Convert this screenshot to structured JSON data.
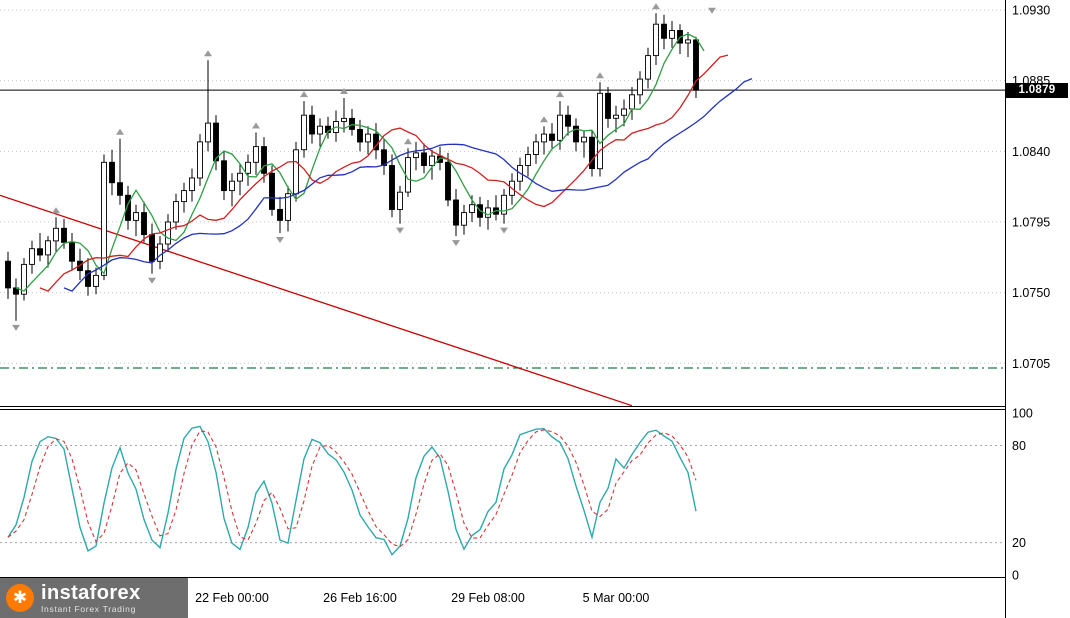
{
  "branding": {
    "logo_text": "instaforex",
    "logo_tagline": "Instant Forex Trading",
    "logo_bg": "#686868",
    "logo_icon_color": "#ff7a00"
  },
  "chart_data": {
    "type": "candlestick",
    "panes": [
      "price-with-moving-averages",
      "stochastic-oscillator"
    ],
    "price_axis": {
      "top": 1.09364,
      "bottom": 1.06778,
      "labels": [
        "1.0930",
        "1.0885",
        "1.0840",
        "1.0795",
        "1.0750",
        "1.0705"
      ],
      "label_prices": [
        1.093,
        1.0885,
        1.084,
        1.0795,
        1.075,
        1.0705
      ],
      "current_price_label": "1.0879",
      "current_price": 1.0879
    },
    "time_axis": {
      "timeframe": "H4",
      "labels": [
        "22 Feb 00:00",
        "26 Feb 16:00",
        "29 Feb 08:00",
        "5 Mar 00:00"
      ],
      "label_indices": [
        28,
        44,
        60,
        76
      ]
    },
    "candles": [
      [
        1.077,
        1.0776,
        1.0746,
        1.0753
      ],
      [
        1.0753,
        1.0759,
        1.0732,
        1.0749
      ],
      [
        1.0749,
        1.0772,
        1.0745,
        1.0768
      ],
      [
        1.0768,
        1.0783,
        1.0762,
        1.0778
      ],
      [
        1.0778,
        1.0788,
        1.077,
        1.0774
      ],
      [
        1.0774,
        1.0786,
        1.0766,
        1.0783
      ],
      [
        1.0783,
        1.0798,
        1.0776,
        1.0791
      ],
      [
        1.0791,
        1.0797,
        1.0778,
        1.0782
      ],
      [
        1.0782,
        1.0788,
        1.0764,
        1.077
      ],
      [
        1.077,
        1.0778,
        1.0758,
        1.0764
      ],
      [
        1.0764,
        1.0772,
        1.0748,
        1.0754
      ],
      [
        1.0754,
        1.0766,
        1.0749,
        1.0761
      ],
      [
        1.0761,
        1.0838,
        1.0758,
        1.0833
      ],
      [
        1.0833,
        1.0841,
        1.0812,
        1.082
      ],
      [
        1.082,
        1.0848,
        1.0806,
        1.0812
      ],
      [
        1.0812,
        1.0818,
        1.079,
        1.0796
      ],
      [
        1.0796,
        1.0806,
        1.0786,
        1.0801
      ],
      [
        1.0801,
        1.0808,
        1.0782,
        1.0787
      ],
      [
        1.0787,
        1.0794,
        1.0762,
        1.077
      ],
      [
        1.077,
        1.0786,
        1.0765,
        1.0781
      ],
      [
        1.0781,
        1.08,
        1.0776,
        1.0795
      ],
      [
        1.0795,
        1.0813,
        1.079,
        1.0808
      ],
      [
        1.0808,
        1.082,
        1.0801,
        1.0815
      ],
      [
        1.0815,
        1.0829,
        1.0808,
        1.0823
      ],
      [
        1.0823,
        1.0851,
        1.0818,
        1.0846
      ],
      [
        1.0846,
        1.0898,
        1.084,
        1.0858
      ],
      [
        1.0858,
        1.0863,
        1.0828,
        1.0834
      ],
      [
        1.0834,
        1.084,
        1.0809,
        1.0815
      ],
      [
        1.0815,
        1.0826,
        1.0805,
        1.0821
      ],
      [
        1.0821,
        1.0832,
        1.0812,
        1.0826
      ],
      [
        1.0826,
        1.0838,
        1.0818,
        1.0833
      ],
      [
        1.0833,
        1.0852,
        1.0825,
        1.0843
      ],
      [
        1.0843,
        1.0849,
        1.082,
        1.0826
      ],
      [
        1.0826,
        1.0831,
        1.0799,
        1.0803
      ],
      [
        1.0803,
        1.0811,
        1.0788,
        1.0796
      ],
      [
        1.0796,
        1.0818,
        1.0789,
        1.0813
      ],
      [
        1.0813,
        1.0846,
        1.0808,
        1.0841
      ],
      [
        1.0841,
        1.0872,
        1.0836,
        1.0863
      ],
      [
        1.0863,
        1.0869,
        1.0845,
        1.0851
      ],
      [
        1.0851,
        1.0861,
        1.0843,
        1.0856
      ],
      [
        1.0856,
        1.0862,
        1.0848,
        1.0852
      ],
      [
        1.0852,
        1.0866,
        1.0846,
        1.0859
      ],
      [
        1.0859,
        1.0874,
        1.0852,
        1.0861
      ],
      [
        1.0861,
        1.0867,
        1.085,
        1.0854
      ],
      [
        1.0854,
        1.086,
        1.084,
        1.0846
      ],
      [
        1.0846,
        1.0856,
        1.0838,
        1.0851
      ],
      [
        1.0851,
        1.0858,
        1.0835,
        1.0841
      ],
      [
        1.0841,
        1.0848,
        1.0825,
        1.0831
      ],
      [
        1.0831,
        1.0838,
        1.0798,
        1.0803
      ],
      [
        1.0803,
        1.0818,
        1.0794,
        1.0814
      ],
      [
        1.0814,
        1.0842,
        1.0811,
        1.0836
      ],
      [
        1.0836,
        1.0846,
        1.0828,
        1.0839
      ],
      [
        1.0839,
        1.0845,
        1.0826,
        1.0831
      ],
      [
        1.0831,
        1.0841,
        1.0822,
        1.0837
      ],
      [
        1.0837,
        1.0843,
        1.0828,
        1.0833
      ],
      [
        1.0833,
        1.0839,
        1.0805,
        1.0809
      ],
      [
        1.0809,
        1.0816,
        1.0786,
        1.0793
      ],
      [
        1.0793,
        1.0806,
        1.0787,
        1.0801
      ],
      [
        1.0801,
        1.0812,
        1.0795,
        1.0806
      ],
      [
        1.0806,
        1.0811,
        1.0792,
        1.0798
      ],
      [
        1.0798,
        1.0809,
        1.079,
        1.0804
      ],
      [
        1.0804,
        1.0812,
        1.0796,
        1.08
      ],
      [
        1.08,
        1.0816,
        1.0794,
        1.0812
      ],
      [
        1.0812,
        1.0826,
        1.0806,
        1.0821
      ],
      [
        1.0821,
        1.0836,
        1.0815,
        1.0831
      ],
      [
        1.0831,
        1.0843,
        1.0824,
        1.0838
      ],
      [
        1.0838,
        1.0851,
        1.0832,
        1.0846
      ],
      [
        1.0846,
        1.0856,
        1.0838,
        1.0851
      ],
      [
        1.0851,
        1.0858,
        1.0842,
        1.0847
      ],
      [
        1.0847,
        1.0872,
        1.0841,
        1.0863
      ],
      [
        1.0863,
        1.0869,
        1.085,
        1.0856
      ],
      [
        1.0856,
        1.0861,
        1.084,
        1.0846
      ],
      [
        1.0846,
        1.0853,
        1.0836,
        1.0849
      ],
      [
        1.0849,
        1.0853,
        1.0824,
        1.0829
      ],
      [
        1.0829,
        1.0884,
        1.0824,
        1.0877
      ],
      [
        1.0877,
        1.0881,
        1.0855,
        1.0861
      ],
      [
        1.0861,
        1.0869,
        1.0852,
        1.0863
      ],
      [
        1.0863,
        1.0873,
        1.0856,
        1.0867
      ],
      [
        1.0867,
        1.0881,
        1.086,
        1.0876
      ],
      [
        1.0876,
        1.0891,
        1.087,
        1.0886
      ],
      [
        1.0886,
        1.0906,
        1.088,
        1.0901
      ],
      [
        1.0901,
        1.0928,
        1.0895,
        1.0921
      ],
      [
        1.0921,
        1.0927,
        1.0905,
        1.0912
      ],
      [
        1.0912,
        1.0923,
        1.0906,
        1.0917
      ],
      [
        1.0917,
        1.0921,
        1.0902,
        1.0909
      ],
      [
        1.0909,
        1.0916,
        1.09,
        1.0911
      ],
      [
        1.0911,
        1.0913,
        1.0874,
        1.0879
      ]
    ],
    "moving_averages": [
      {
        "name": "ma-fast-green",
        "period": 4,
        "shift": 1,
        "color": "#2e9e44"
      },
      {
        "name": "ma-mid-red",
        "period": 9,
        "shift": 4,
        "color": "#cc2222"
      },
      {
        "name": "ma-slow-blue",
        "period": 14,
        "shift": 7,
        "color": "#2233bb"
      }
    ],
    "trendline": {
      "from_index": -1,
      "from_price": 1.0812,
      "to_index": 78,
      "to_price": 1.0678,
      "color": "#cc0000"
    },
    "price_line": {
      "price": 1.0879,
      "color": "#000000"
    },
    "support_line": {
      "price": 1.0702,
      "color": "#1f7a46",
      "style": "dash-dot"
    },
    "fractal_arrows": [
      {
        "i": 1,
        "dir": "down"
      },
      {
        "i": 6,
        "dir": "up"
      },
      {
        "i": 14,
        "dir": "up"
      },
      {
        "i": 18,
        "dir": "down"
      },
      {
        "i": 25,
        "dir": "up"
      },
      {
        "i": 31,
        "dir": "up"
      },
      {
        "i": 34,
        "dir": "down"
      },
      {
        "i": 37,
        "dir": "up"
      },
      {
        "i": 42,
        "dir": "up"
      },
      {
        "i": 49,
        "dir": "down"
      },
      {
        "i": 50,
        "dir": "up"
      },
      {
        "i": 56,
        "dir": "down"
      },
      {
        "i": 62,
        "dir": "down"
      },
      {
        "i": 67,
        "dir": "up"
      },
      {
        "i": 69,
        "dir": "up"
      },
      {
        "i": 74,
        "dir": "up"
      },
      {
        "i": 81,
        "dir": "up"
      },
      {
        "i": 88,
        "dir": "down",
        "price": 1.0934
      }
    ],
    "stochastic": {
      "k_period": 5,
      "k_smooth": 3,
      "d_period": 3,
      "levels": [
        80,
        20
      ],
      "axis_labels": [
        "100",
        "80",
        "20",
        "0"
      ],
      "axis_values": [
        100,
        80,
        20,
        0
      ],
      "k_color": "#2fa8ad",
      "d_color": "#d03a3a"
    },
    "colors": {
      "grid": "#c6c6c6",
      "bull": "#ffffff",
      "bear": "#000000",
      "outline": "#000000",
      "arrow": "#9a9a9a",
      "axis_text": "#000000",
      "badge_bg": "#000000",
      "badge_text": "#ffffff",
      "stoch_level": "#a8a8a8"
    }
  }
}
